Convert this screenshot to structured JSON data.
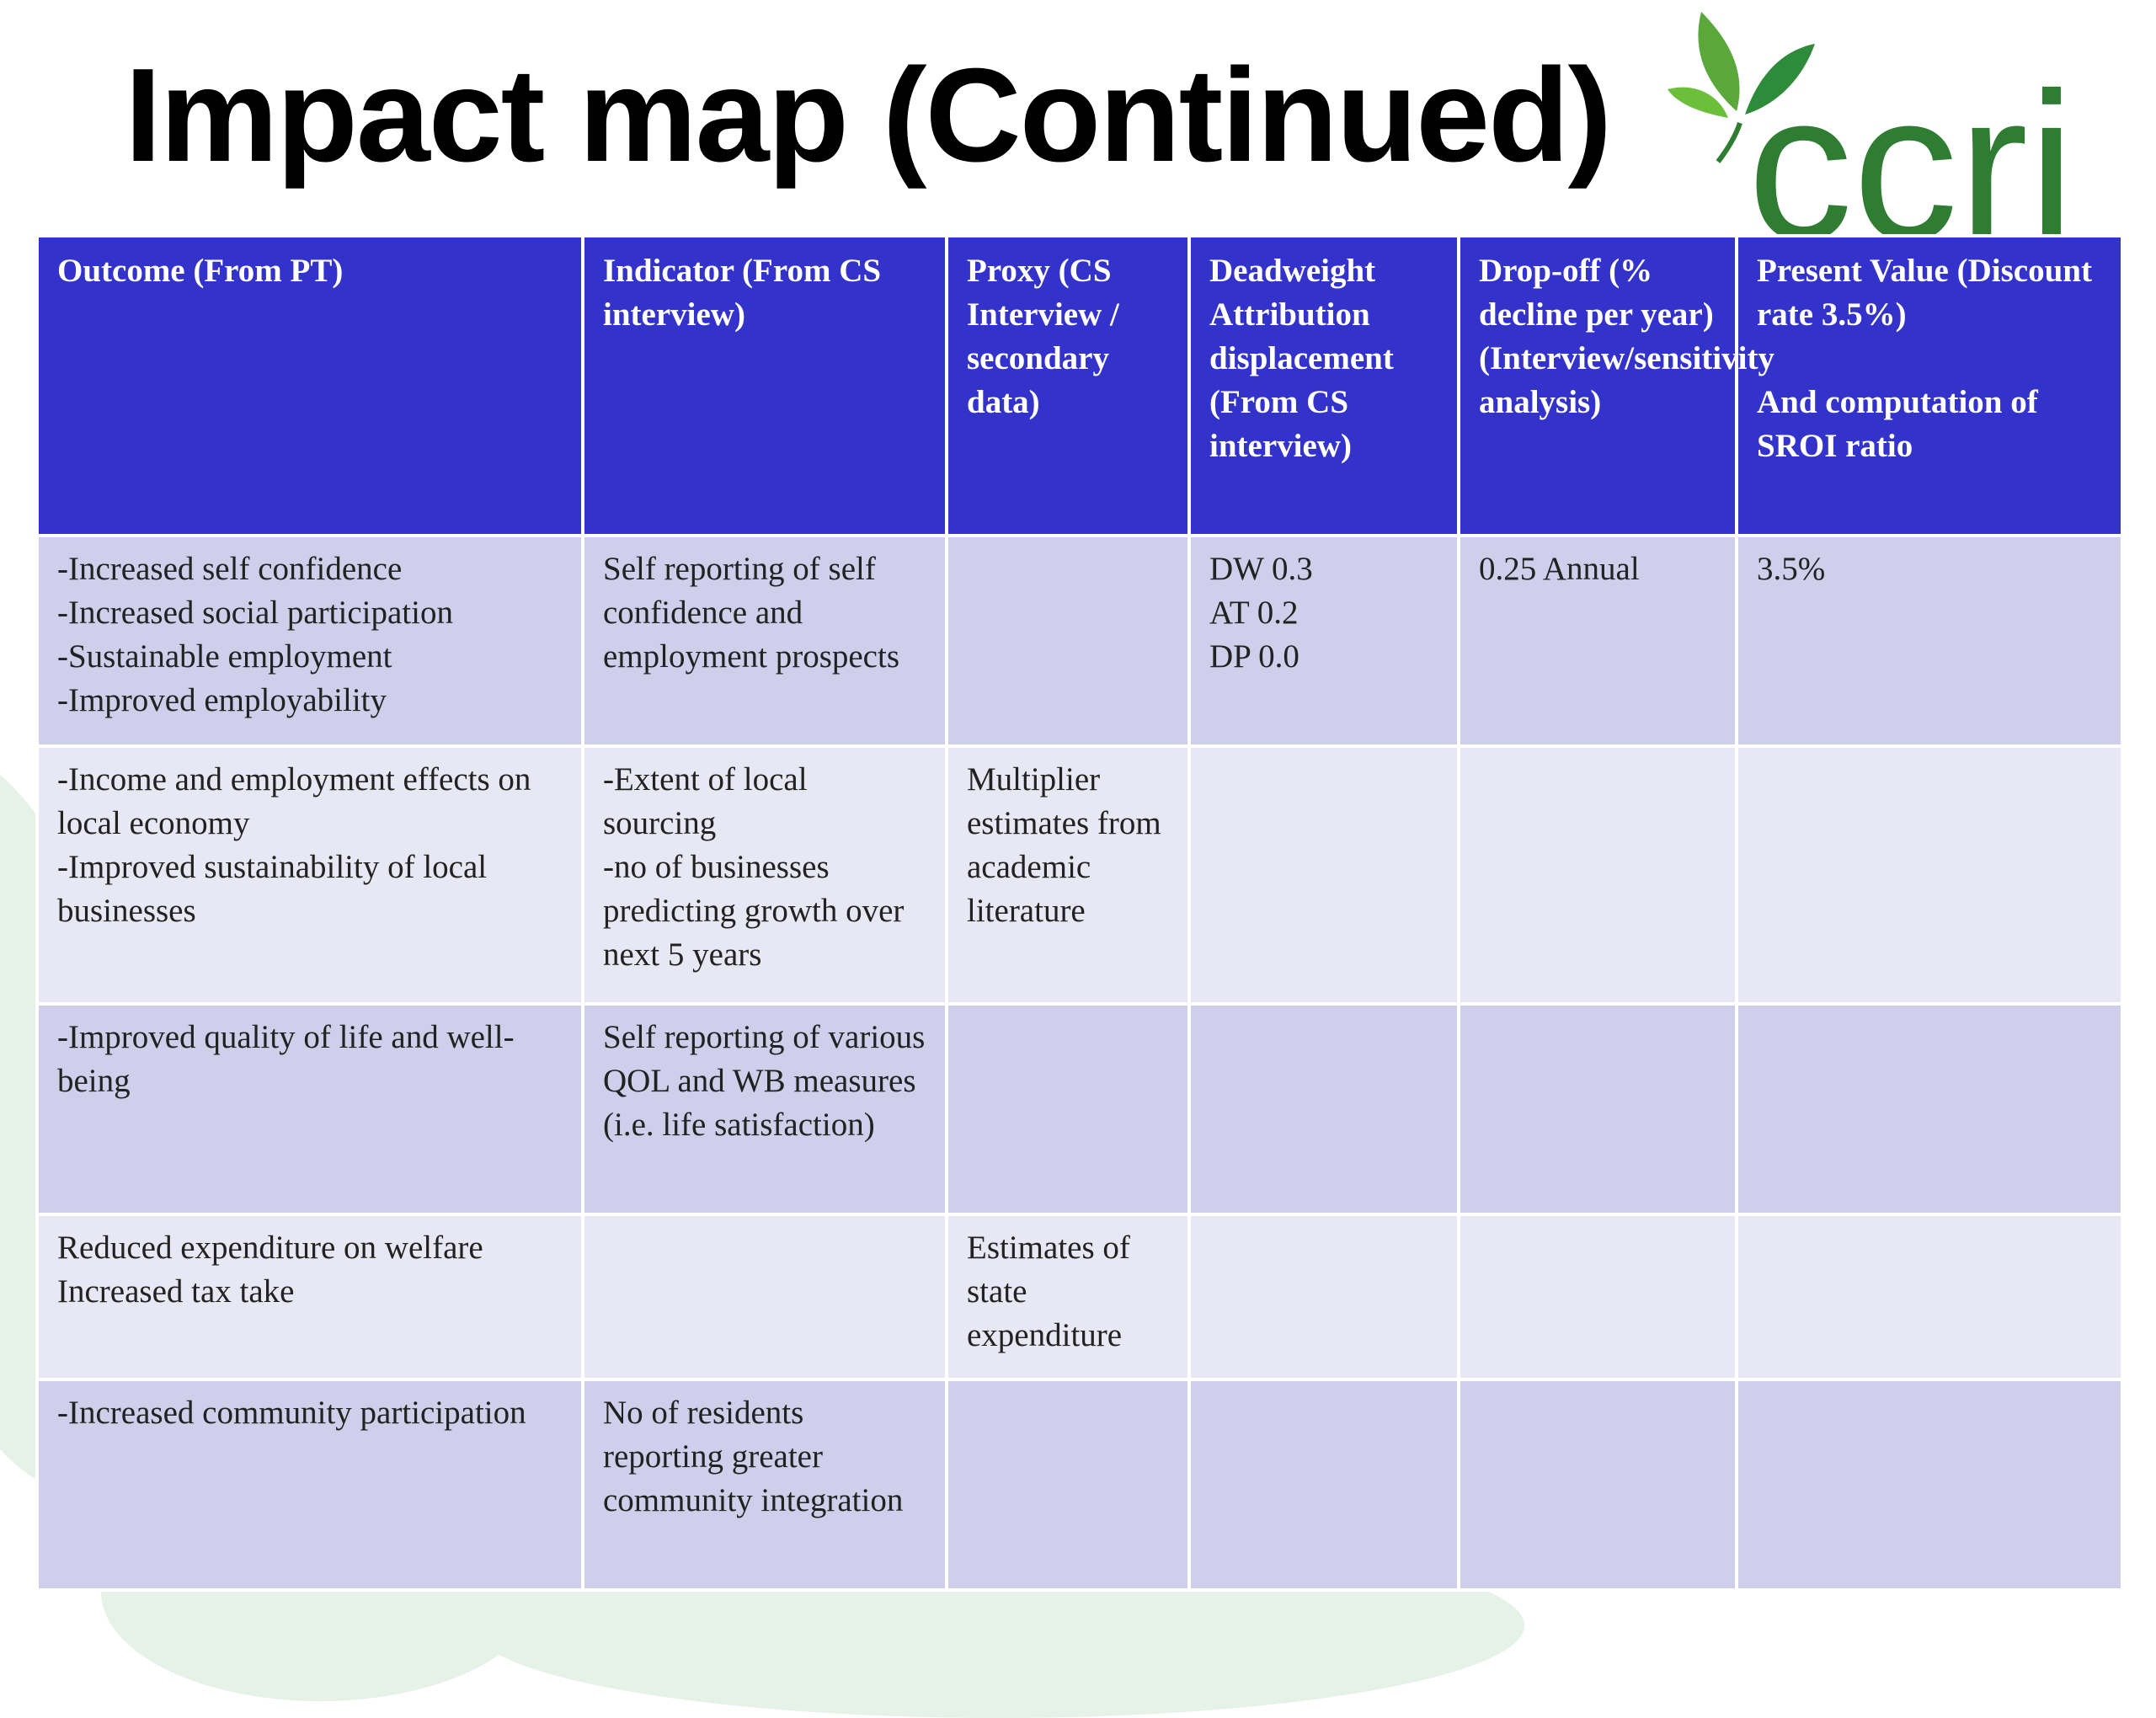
{
  "slide": {
    "title": "Impact map (Continued)"
  },
  "logo": {
    "text": "ccri",
    "icon": "leaf-icon",
    "color": "#2e7d32"
  },
  "table": {
    "headers": [
      "Outcome (From PT)",
      "Indicator (From CS interview)",
      "Proxy (CS Interview / secondary data)",
      "Deadweight Attribution displacement (From CS interview)",
      "Drop-off (% decline per year) (Interview/sensitivity analysis)",
      "Present Value (Discount rate 3.5%)\n\nAnd computation of SROI ratio"
    ],
    "rows": [
      [
        "-Increased self confidence\n-Increased social participation\n-Sustainable employment\n-Improved employability",
        "Self reporting of self confidence and employment prospects",
        "",
        "DW 0.3\nAT 0.2\nDP 0.0",
        "0.25 Annual",
        "3.5%"
      ],
      [
        "-Income and employment effects on local economy\n-Improved sustainability of local businesses",
        "-Extent of local sourcing\n-no of businesses predicting growth over next 5 years",
        "Multiplier estimates from academic literature",
        "",
        "",
        ""
      ],
      [
        "-Improved quality of life and well-being",
        "Self reporting of various QOL and WB measures (i.e. life satisfaction)",
        "",
        "",
        "",
        ""
      ],
      [
        "Reduced expenditure on welfare\nIncreased tax take",
        "",
        "Estimates of state expenditure",
        "",
        "",
        ""
      ],
      [
        "-Increased community participation",
        "No of residents reporting greater community integration",
        "",
        "",
        "",
        ""
      ]
    ]
  },
  "colors": {
    "header_bg": "#3333cc",
    "row_odd_bg": "#cfcfeb",
    "row_even_bg": "#e8e8f5"
  }
}
